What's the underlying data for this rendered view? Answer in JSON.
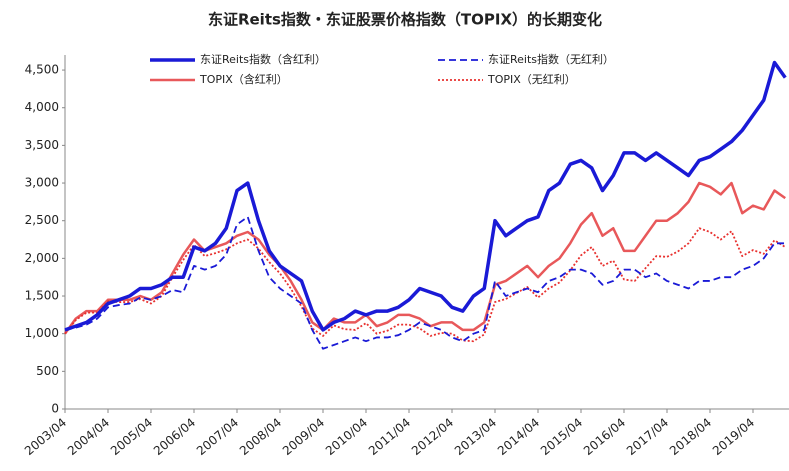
{
  "chart_data": {
    "type": "line",
    "title": "东证Reits指数・东证股票价格指数（TOPIX）的长期变化",
    "x": [
      "2003/04",
      null,
      null,
      null,
      "2004/04",
      null,
      null,
      null,
      "2005/04",
      null,
      null,
      null,
      "2006/04",
      null,
      null,
      null,
      "2007/04",
      null,
      null,
      null,
      "2008/04",
      null,
      null,
      null,
      "2009/04",
      null,
      null,
      null,
      "2010/04",
      null,
      null,
      null,
      "2011/04",
      null,
      null,
      null,
      "2012/04",
      null,
      null,
      null,
      "2013/04",
      null,
      null,
      null,
      "2014/04",
      null,
      null,
      null,
      "2015/04",
      null,
      null,
      null,
      "2016/04",
      null,
      null,
      null,
      "2017/04",
      null,
      null,
      null,
      "2018/04",
      null,
      null,
      null,
      "2019/04",
      null,
      null,
      null
    ],
    "ylim": [
      0,
      4700
    ],
    "yticks": [
      0,
      500,
      {
        "value": 1000,
        "label": "1,000"
      },
      {
        "value": 1500,
        "label": "1,500"
      },
      {
        "value": 2000,
        "label": "2,000"
      },
      {
        "value": 2500,
        "label": "2,500"
      },
      {
        "value": 3000,
        "label": "3,000"
      },
      {
        "value": 3500,
        "label": "3,500"
      },
      {
        "value": 4000,
        "label": "4,000"
      },
      {
        "value": 4500,
        "label": "4,500"
      }
    ],
    "series": [
      {
        "name": "东证Reits指数（含红利）",
        "color": "#1a1ad6",
        "style": "solid",
        "values": [
          1050,
          1100,
          1150,
          1250,
          1400,
          1450,
          1500,
          1600,
          1600,
          1650,
          1750,
          1750,
          2150,
          2100,
          2200,
          2400,
          2900,
          3000,
          2500,
          2100,
          1900,
          1800,
          1700,
          1300,
          1050,
          1150,
          1200,
          1300,
          1250,
          1300,
          1300,
          1350,
          1450,
          1600,
          1550,
          1500,
          1350,
          1300,
          1500,
          1600,
          2500,
          2300,
          2400,
          2500,
          2550,
          2900,
          3000,
          3250,
          3300,
          3200,
          2900,
          3100,
          3400,
          3400,
          3300,
          3400,
          3300,
          3200,
          3100,
          3300,
          3350,
          3450,
          3550,
          3700,
          3900,
          4100,
          4600,
          4400
        ]
      },
      {
        "name": "东证Reits指数（无红利）",
        "color": "#1a1ad6",
        "style": "dashed",
        "values": [
          1050,
          1080,
          1120,
          1200,
          1350,
          1380,
          1400,
          1480,
          1450,
          1500,
          1580,
          1550,
          1900,
          1850,
          1900,
          2050,
          2450,
          2550,
          2100,
          1750,
          1600,
          1500,
          1400,
          1050,
          800,
          850,
          900,
          950,
          900,
          950,
          950,
          980,
          1050,
          1150,
          1100,
          1050,
          950,
          900,
          1000,
          1050,
          1700,
          1500,
          1550,
          1600,
          1550,
          1700,
          1750,
          1850,
          1850,
          1800,
          1650,
          1700,
          1850,
          1850,
          1750,
          1800,
          1700,
          1650,
          1600,
          1700,
          1700,
          1750,
          1750,
          1850,
          1900,
          2000,
          2200,
          2200
        ]
      },
      {
        "name": "TOPIX（含红利）",
        "color": "#e8585a",
        "style": "solid",
        "values": [
          1000,
          1200,
          1300,
          1300,
          1450,
          1450,
          1450,
          1500,
          1450,
          1550,
          1800,
          2050,
          2250,
          2100,
          2150,
          2200,
          2300,
          2350,
          2250,
          2050,
          1900,
          1700,
          1450,
          1150,
          1050,
          1200,
          1150,
          1150,
          1250,
          1100,
          1150,
          1250,
          1250,
          1200,
          1100,
          1150,
          1150,
          1050,
          1050,
          1150,
          1650,
          1700,
          1800,
          1900,
          1750,
          1900,
          2000,
          2200,
          2450,
          2600,
          2300,
          2400,
          2100,
          2100,
          2300,
          2500,
          2500,
          2600,
          2750,
          3000,
          2950,
          2850,
          3000,
          2600,
          2700,
          2650,
          2900,
          2800
        ]
      },
      {
        "name": "TOPIX（无红利）",
        "color": "#e8312f",
        "style": "dotted",
        "values": [
          1000,
          1180,
          1280,
          1280,
          1430,
          1420,
          1420,
          1460,
          1400,
          1500,
          1750,
          1980,
          2180,
          2030,
          2070,
          2120,
          2200,
          2250,
          2130,
          1950,
          1800,
          1600,
          1360,
          1070,
          970,
          1110,
          1060,
          1050,
          1140,
          1000,
          1040,
          1120,
          1120,
          1070,
          970,
          1010,
          1000,
          910,
          900,
          990,
          1420,
          1460,
          1540,
          1620,
          1480,
          1600,
          1680,
          1840,
          2040,
          2150,
          1900,
          1970,
          1720,
          1700,
          1870,
          2030,
          2020,
          2090,
          2200,
          2400,
          2350,
          2250,
          2360,
          2030,
          2110,
          2060,
          2240,
          2150
        ]
      }
    ]
  }
}
